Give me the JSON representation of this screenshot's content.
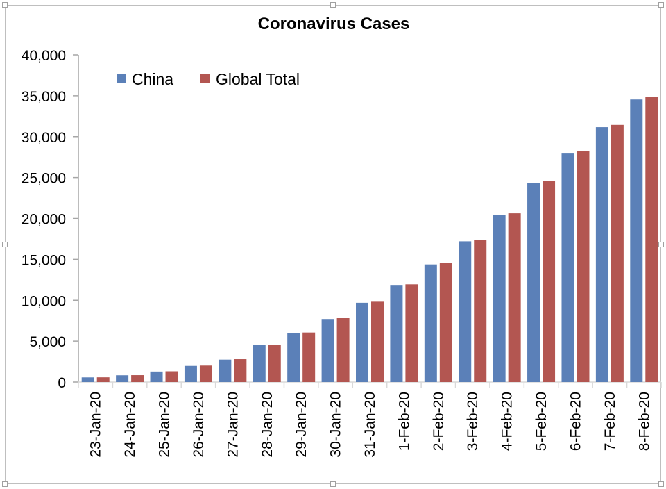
{
  "chart_data": {
    "type": "bar",
    "title": "Coronavirus Cases",
    "xlabel": "",
    "ylabel": "",
    "ylim": [
      0,
      40000
    ],
    "yticks": [
      0,
      5000,
      10000,
      15000,
      20000,
      25000,
      30000,
      35000,
      40000
    ],
    "ytick_labels": [
      "0",
      "5,000",
      "10,000",
      "15,000",
      "20,000",
      "25,000",
      "30,000",
      "35,000",
      "40,000"
    ],
    "grid": false,
    "legend_position": "top-left",
    "categories": [
      "23-Jan-20",
      "24-Jan-20",
      "25-Jan-20",
      "26-Jan-20",
      "27-Jan-20",
      "28-Jan-20",
      "29-Jan-20",
      "30-Jan-20",
      "31-Jan-20",
      "1-Feb-20",
      "2-Feb-20",
      "3-Feb-20",
      "4-Feb-20",
      "5-Feb-20",
      "6-Feb-20",
      "7-Feb-20",
      "8-Feb-20"
    ],
    "series": [
      {
        "name": "China",
        "color": "#5b80b8",
        "values": [
          571,
          830,
          1287,
          1975,
          2744,
          4515,
          5974,
          7711,
          9692,
          11791,
          14380,
          17205,
          20438,
          24324,
          28018,
          31161,
          34546
        ]
      },
      {
        "name": "Global Total",
        "color": "#b35651",
        "values": [
          580,
          845,
          1317,
          2015,
          2800,
          4581,
          6058,
          7813,
          9821,
          11948,
          14551,
          17389,
          20628,
          24553,
          28276,
          31439,
          34875
        ]
      }
    ]
  }
}
